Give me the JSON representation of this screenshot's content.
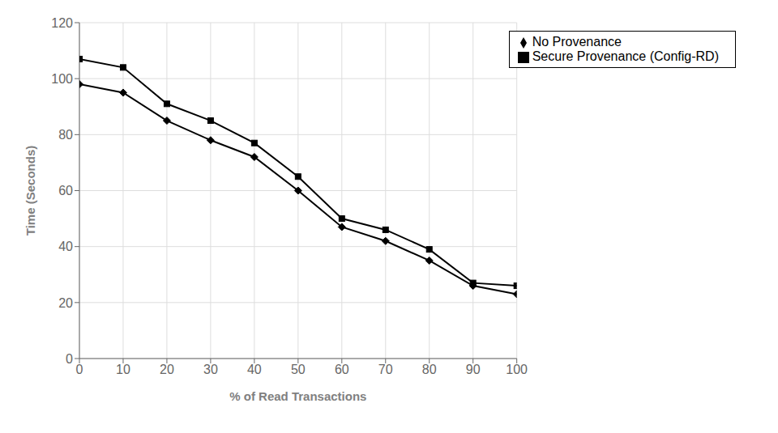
{
  "chart_data": {
    "type": "line",
    "x": [
      0,
      10,
      20,
      30,
      40,
      50,
      60,
      70,
      80,
      90,
      100
    ],
    "series": [
      {
        "name": "No Provenance",
        "color": "#000000",
        "marker": "diamond",
        "values": [
          98,
          95,
          85,
          78,
          72,
          60,
          47,
          42,
          35,
          26,
          23
        ]
      },
      {
        "name": "Secure Provenance (Config-RD)",
        "color": "#000000",
        "marker": "square",
        "values": [
          107,
          104,
          91,
          85,
          77,
          65,
          50,
          46,
          39,
          27,
          26
        ]
      }
    ],
    "xlabel": "% of Read Transactions",
    "ylabel": "Time (Seconds)",
    "xlim": [
      0,
      100
    ],
    "ylim": [
      0,
      120
    ],
    "xticks": [
      0,
      10,
      20,
      30,
      40,
      50,
      60,
      70,
      80,
      90,
      100
    ],
    "yticks": [
      0,
      20,
      40,
      60,
      80,
      100,
      120
    ],
    "grid": true,
    "legend": "upper right"
  }
}
